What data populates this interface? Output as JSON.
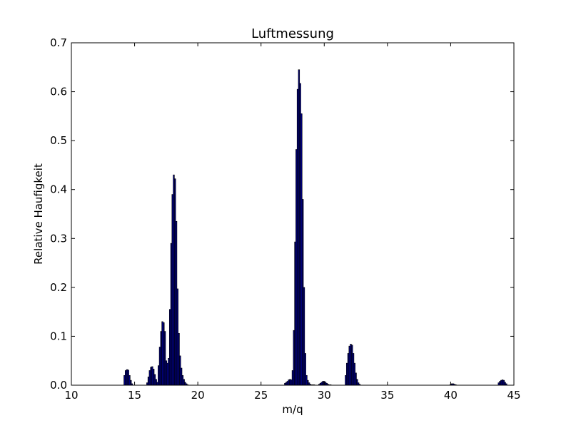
{
  "chart_data": {
    "type": "bar",
    "title": "Luftmessung",
    "xlabel": "m/q",
    "ylabel": "Relative Haufigkeit",
    "xlim": [
      10,
      45
    ],
    "ylim": [
      0,
      0.7
    ],
    "xticks": [
      "10",
      "15",
      "20",
      "25",
      "30",
      "35",
      "40",
      "45"
    ],
    "yticks": [
      "0.0",
      "0.1",
      "0.2",
      "0.3",
      "0.4",
      "0.5",
      "0.6",
      "0.7"
    ],
    "bin_width": 0.1,
    "grid": false,
    "bar_color": "#00007f",
    "edge_color": "#000000",
    "x": [
      14.2,
      14.3,
      14.4,
      14.5,
      14.6,
      14.7,
      14.8,
      16.0,
      16.1,
      16.2,
      16.3,
      16.4,
      16.5,
      16.6,
      16.7,
      16.8,
      16.9,
      17.0,
      17.1,
      17.2,
      17.3,
      17.4,
      17.5,
      17.6,
      17.7,
      17.8,
      17.9,
      18.0,
      18.1,
      18.2,
      18.3,
      18.4,
      18.5,
      18.6,
      18.7,
      18.8,
      18.9,
      19.0,
      19.1,
      19.2,
      26.9,
      27.0,
      27.1,
      27.2,
      27.3,
      27.4,
      27.5,
      27.6,
      27.7,
      27.8,
      27.9,
      28.0,
      28.1,
      28.2,
      28.3,
      28.4,
      28.5,
      28.6,
      28.7,
      28.8,
      28.9,
      29.0,
      29.1,
      29.2,
      29.6,
      29.7,
      29.8,
      29.9,
      30.0,
      30.1,
      30.2,
      30.3,
      30.4,
      30.5,
      31.7,
      31.8,
      31.9,
      32.0,
      32.1,
      32.2,
      32.3,
      32.4,
      32.5,
      32.6,
      32.7,
      32.8,
      40.0,
      40.1,
      40.2,
      40.3,
      40.4,
      43.8,
      43.9,
      44.0,
      44.1,
      44.2,
      44.3,
      44.4
    ],
    "values": [
      0.02,
      0.03,
      0.032,
      0.031,
      0.02,
      0.01,
      0.003,
      0.005,
      0.017,
      0.03,
      0.037,
      0.038,
      0.033,
      0.022,
      0.012,
      0.006,
      0.04,
      0.078,
      0.11,
      0.13,
      0.128,
      0.11,
      0.05,
      0.045,
      0.055,
      0.155,
      0.29,
      0.39,
      0.43,
      0.422,
      0.335,
      0.197,
      0.106,
      0.06,
      0.035,
      0.02,
      0.012,
      0.006,
      0.003,
      0.001,
      0.004,
      0.006,
      0.008,
      0.011,
      0.012,
      0.011,
      0.03,
      0.112,
      0.293,
      0.482,
      0.605,
      0.645,
      0.617,
      0.555,
      0.38,
      0.2,
      0.065,
      0.02,
      0.01,
      0.005,
      0.002,
      0.001,
      0.001,
      0.001,
      0.002,
      0.004,
      0.006,
      0.008,
      0.008,
      0.006,
      0.004,
      0.002,
      0.001,
      0.001,
      0.02,
      0.045,
      0.065,
      0.08,
      0.084,
      0.082,
      0.065,
      0.045,
      0.025,
      0.012,
      0.005,
      0.002,
      0.002,
      0.003,
      0.003,
      0.002,
      0.001,
      0.005,
      0.008,
      0.01,
      0.011,
      0.01,
      0.006,
      0.003
    ]
  }
}
